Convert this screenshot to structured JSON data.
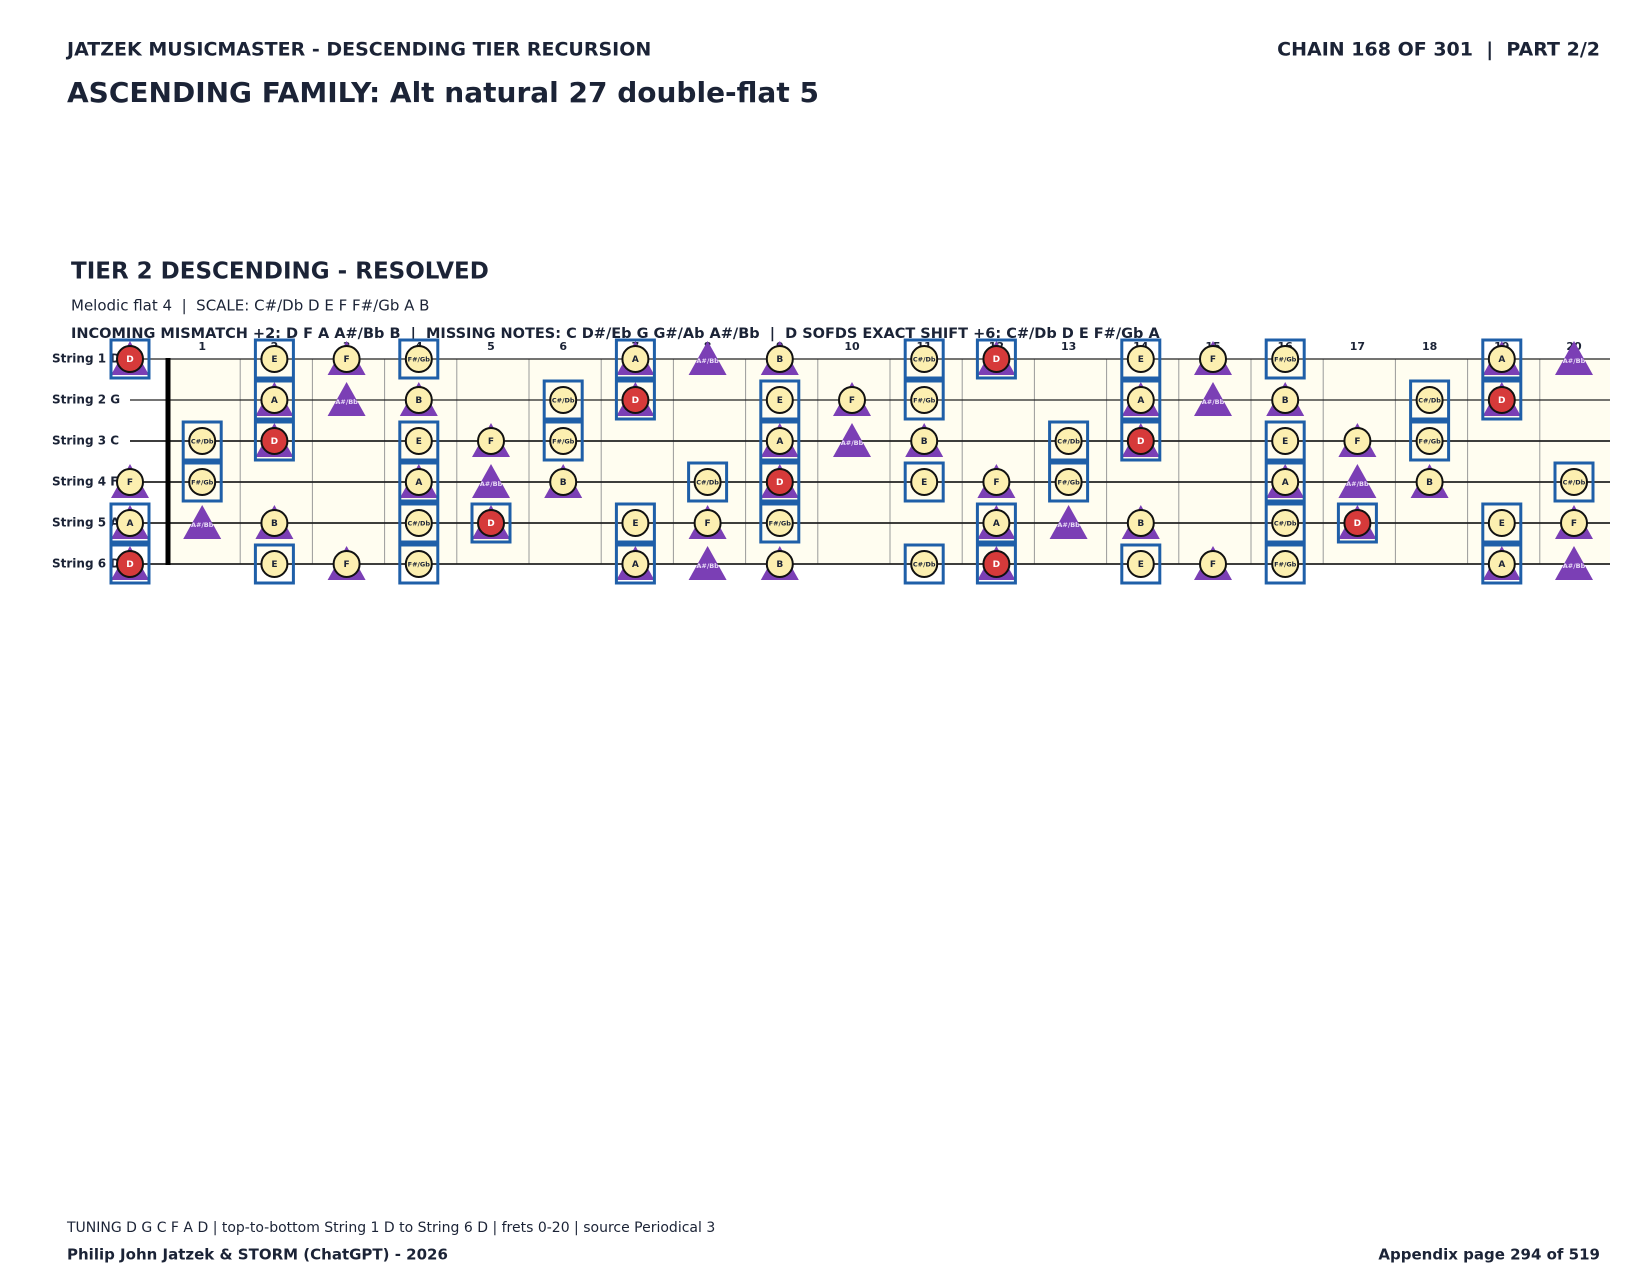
{
  "header": {
    "series": "JATZEK MUSICMASTER - DESCENDING TIER RECURSION",
    "chain": "CHAIN 168 OF 301  |  PART 2/2",
    "title": "ASCENDING FAMILY: Alt natural 27 double-flat 5"
  },
  "section": {
    "title": "TIER 2 DESCENDING - RESOLVED",
    "subtitle": "Melodic flat 4  |  SCALE: C#/Db D E F F#/Gb A B",
    "info": "INCOMING MISMATCH +2: D F A A#/Bb B  |  MISSING NOTES: C D#/Eb G G#/Ab A#/Bb  |  D SOFDS EXACT SHIFT +6: C#/Db D E F#/Gb A"
  },
  "fretboard": {
    "fret_numbers": [
      1,
      2,
      3,
      4,
      5,
      6,
      7,
      8,
      9,
      10,
      11,
      12,
      13,
      14,
      15,
      16,
      17,
      18,
      19,
      20
    ],
    "strings": [
      {
        "label": "String 1 D",
        "cells": [
          [
            "D",
            "rbt"
          ],
          null,
          [
            "E",
            "cb"
          ],
          [
            "F",
            "ct"
          ],
          [
            "F#/Gb",
            "cb"
          ],
          null,
          null,
          [
            "A",
            "cbt"
          ],
          [
            "A#/Bb",
            "t"
          ],
          [
            "B",
            "ct"
          ],
          null,
          [
            "C#/Db",
            "cb"
          ],
          [
            "D",
            "rbt"
          ],
          null,
          [
            "E",
            "cb"
          ],
          [
            "F",
            "ct"
          ],
          [
            "F#/Gb",
            "cb"
          ],
          null,
          null,
          [
            "A",
            "cbt"
          ],
          [
            "A#/Bb",
            "t"
          ]
        ]
      },
      {
        "label": "String 2 G",
        "cells": [
          null,
          null,
          [
            "A",
            "cbt"
          ],
          [
            "A#/Bb",
            "t"
          ],
          [
            "B",
            "ct"
          ],
          null,
          [
            "C#/Db",
            "cb"
          ],
          [
            "D",
            "rbt"
          ],
          null,
          [
            "E",
            "cb"
          ],
          [
            "F",
            "ct"
          ],
          [
            "F#/Gb",
            "cb"
          ],
          null,
          null,
          [
            "A",
            "cbt"
          ],
          [
            "A#/Bb",
            "t"
          ],
          [
            "B",
            "ct"
          ],
          null,
          [
            "C#/Db",
            "cb"
          ],
          [
            "D",
            "rbt"
          ],
          null
        ]
      },
      {
        "label": "String 3 C",
        "cells": [
          null,
          [
            "C#/Db",
            "cb"
          ],
          [
            "D",
            "rbt"
          ],
          null,
          [
            "E",
            "cb"
          ],
          [
            "F",
            "ct"
          ],
          [
            "F#/Gb",
            "cb"
          ],
          null,
          null,
          [
            "A",
            "cbt"
          ],
          [
            "A#/Bb",
            "t"
          ],
          [
            "B",
            "ct"
          ],
          null,
          [
            "C#/Db",
            "cb"
          ],
          [
            "D",
            "rbt"
          ],
          null,
          [
            "E",
            "cb"
          ],
          [
            "F",
            "ct"
          ],
          [
            "F#/Gb",
            "cb"
          ],
          null,
          null
        ]
      },
      {
        "label": "String 4 F",
        "cells": [
          [
            "F",
            "ct"
          ],
          [
            "F#/Gb",
            "cb"
          ],
          null,
          null,
          [
            "A",
            "cbt"
          ],
          [
            "A#/Bb",
            "t"
          ],
          [
            "B",
            "ct"
          ],
          null,
          [
            "C#/Db",
            "cb"
          ],
          [
            "D",
            "rbt"
          ],
          null,
          [
            "E",
            "cb"
          ],
          [
            "F",
            "ct"
          ],
          [
            "F#/Gb",
            "cb"
          ],
          null,
          null,
          [
            "A",
            "cbt"
          ],
          [
            "A#/Bb",
            "t"
          ],
          [
            "B",
            "ct"
          ],
          null,
          [
            "C#/Db",
            "cb"
          ]
        ]
      },
      {
        "label": "String 5 A",
        "cells": [
          [
            "A",
            "cbt"
          ],
          [
            "A#/Bb",
            "t"
          ],
          [
            "B",
            "ct"
          ],
          null,
          [
            "C#/Db",
            "cb"
          ],
          [
            "D",
            "rbt"
          ],
          null,
          [
            "E",
            "cb"
          ],
          [
            "F",
            "ct"
          ],
          [
            "F#/Gb",
            "cb"
          ],
          null,
          null,
          [
            "A",
            "cbt"
          ],
          [
            "A#/Bb",
            "t"
          ],
          [
            "B",
            "ct"
          ],
          null,
          [
            "C#/Db",
            "cb"
          ],
          [
            "D",
            "rbt"
          ],
          null,
          [
            "E",
            "cb"
          ],
          [
            "F",
            "ct"
          ]
        ]
      },
      {
        "label": "String 6 D",
        "cells": [
          [
            "D",
            "rbt"
          ],
          null,
          [
            "E",
            "cb"
          ],
          [
            "F",
            "ct"
          ],
          [
            "F#/Gb",
            "cb"
          ],
          null,
          null,
          [
            "A",
            "cbt"
          ],
          [
            "A#/Bb",
            "t"
          ],
          [
            "B",
            "ct"
          ],
          null,
          [
            "C#/Db",
            "cb"
          ],
          [
            "D",
            "rbt"
          ],
          null,
          [
            "E",
            "cb"
          ],
          [
            "F",
            "ct"
          ],
          [
            "F#/Gb",
            "cb"
          ],
          null,
          null,
          [
            "A",
            "cbt"
          ],
          [
            "A#/Bb",
            "t"
          ]
        ]
      }
    ]
  },
  "footer": {
    "note": "TUNING D G C F A D | top-to-bottom String 1 D to String 6 D | frets 0-20 | source Periodical 3",
    "credit": "Philip John Jatzek & STORM (ChatGPT) - 2026",
    "page": "Appendix page 294 of 519"
  }
}
